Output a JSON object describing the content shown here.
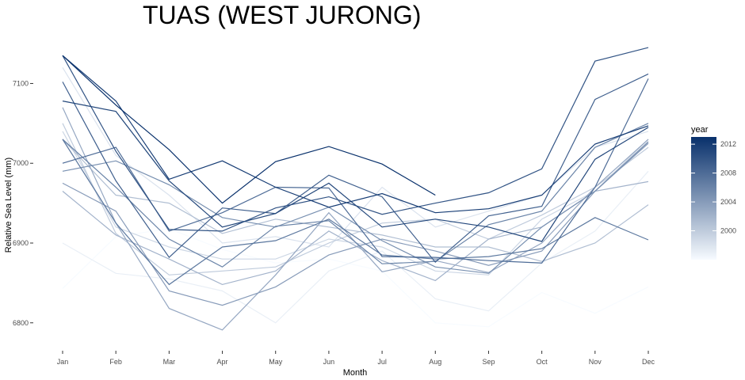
{
  "chart_data": {
    "type": "line",
    "title": "TUAS (WEST JURONG)",
    "xlabel": "Month",
    "ylabel": "Relative Sea Level (mm)",
    "categories": [
      "Jan",
      "Feb",
      "Mar",
      "Apr",
      "May",
      "Jun",
      "Jul",
      "Aug",
      "Sep",
      "Oct",
      "Nov",
      "Dec"
    ],
    "y_ticks": [
      "6800",
      "6900",
      "7000",
      "7100"
    ],
    "ylim": [
      6770,
      7160
    ],
    "grid": false,
    "color_scale": {
      "title": "year",
      "low_color": "#f7fbff",
      "high_color": "#08306b",
      "range": [
        1996,
        2013
      ],
      "ticks": [
        "2000",
        "2004",
        "2008",
        "2012"
      ]
    },
    "legend_position": "right",
    "series": [
      {
        "year": 1996,
        "values": [
          6843,
          6908,
          6918,
          6892,
          6875,
          6880,
          6865,
          6800,
          6795,
          6838,
          6812,
          6845
        ]
      },
      {
        "year": 1997,
        "values": [
          6900,
          6862,
          6855,
          6840,
          6800,
          6865,
          6890,
          6830,
          6815,
          6875,
          6915,
          6990
        ]
      },
      {
        "year": 1998,
        "values": [
          7120,
          7010,
          6960,
          6900,
          6908,
          6895,
          6970,
          6920,
          6940,
          6960,
          7020,
          7040
        ]
      },
      {
        "year": 1999,
        "values": [
          7040,
          6920,
          6895,
          6880,
          6880,
          6905,
          6895,
          6865,
          6860,
          6930,
          6965,
          7030
        ]
      },
      {
        "year": 2000,
        "values": [
          7050,
          6912,
          6860,
          6865,
          6870,
          6900,
          6925,
          6930,
          6905,
          6935,
          6970,
          7020
        ]
      },
      {
        "year": 2001,
        "values": [
          7030,
          6960,
          6950,
          6912,
          6930,
          6920,
          6910,
          6895,
          6895,
          6877,
          6900,
          6948
        ]
      },
      {
        "year": 2002,
        "values": [
          6965,
          6910,
          6880,
          6848,
          6865,
          6915,
          6878,
          6853,
          6905,
          6920,
          6965,
          6977
        ]
      },
      {
        "year": 2003,
        "values": [
          7070,
          6925,
          6818,
          6791,
          6860,
          6938,
          6864,
          6878,
          6863,
          6900,
          6970,
          7030
        ]
      },
      {
        "year": 2004,
        "values": [
          6975,
          6940,
          6840,
          6822,
          6845,
          6885,
          6905,
          6890,
          6872,
          6890,
          6965,
          7025
        ]
      },
      {
        "year": 2005,
        "values": [
          6990,
          7003,
          6973,
          6932,
          6920,
          6945,
          6903,
          6870,
          6862,
          6920,
          6965,
          7027
        ]
      },
      {
        "year": 2006,
        "values": [
          7030,
          6970,
          6905,
          6870,
          6921,
          6928,
          6874,
          6877,
          6923,
          6940,
          7020,
          7050
        ]
      },
      {
        "year": 2007,
        "values": [
          7030,
          6925,
          6848,
          6895,
          6903,
          6930,
          6885,
          6880,
          6883,
          6893,
          6932,
          6904
        ]
      },
      {
        "year": 2008,
        "values": [
          7000,
          7020,
          6915,
          6938,
          6970,
          6969,
          6883,
          6882,
          6878,
          6875,
          6970,
          7106
        ]
      },
      {
        "year": 2009,
        "values": [
          7102,
          6978,
          6882,
          6944,
          6937,
          6985,
          6958,
          6876,
          6934,
          6946,
          7080,
          7112
        ]
      },
      {
        "year": 2010,
        "values": [
          7135,
          7015,
          6917,
          6915,
          6944,
          6958,
          6936,
          6950,
          6963,
          6993,
          7128,
          7145
        ]
      },
      {
        "year": 2011,
        "values": [
          7078,
          7065,
          6978,
          6920,
          6937,
          6975,
          6920,
          6930,
          6920,
          6902,
          7005,
          7045
        ]
      },
      {
        "year": 2012,
        "values": [
          7135,
          7078,
          6980,
          7003,
          6970,
          6945,
          6962,
          6938,
          6943,
          6960,
          7024,
          7047
        ]
      },
      {
        "year": 2013,
        "values": [
          7135,
          7073,
          7017,
          6950,
          7002,
          7021,
          6999,
          6960,
          null,
          null,
          null,
          null
        ]
      }
    ]
  }
}
